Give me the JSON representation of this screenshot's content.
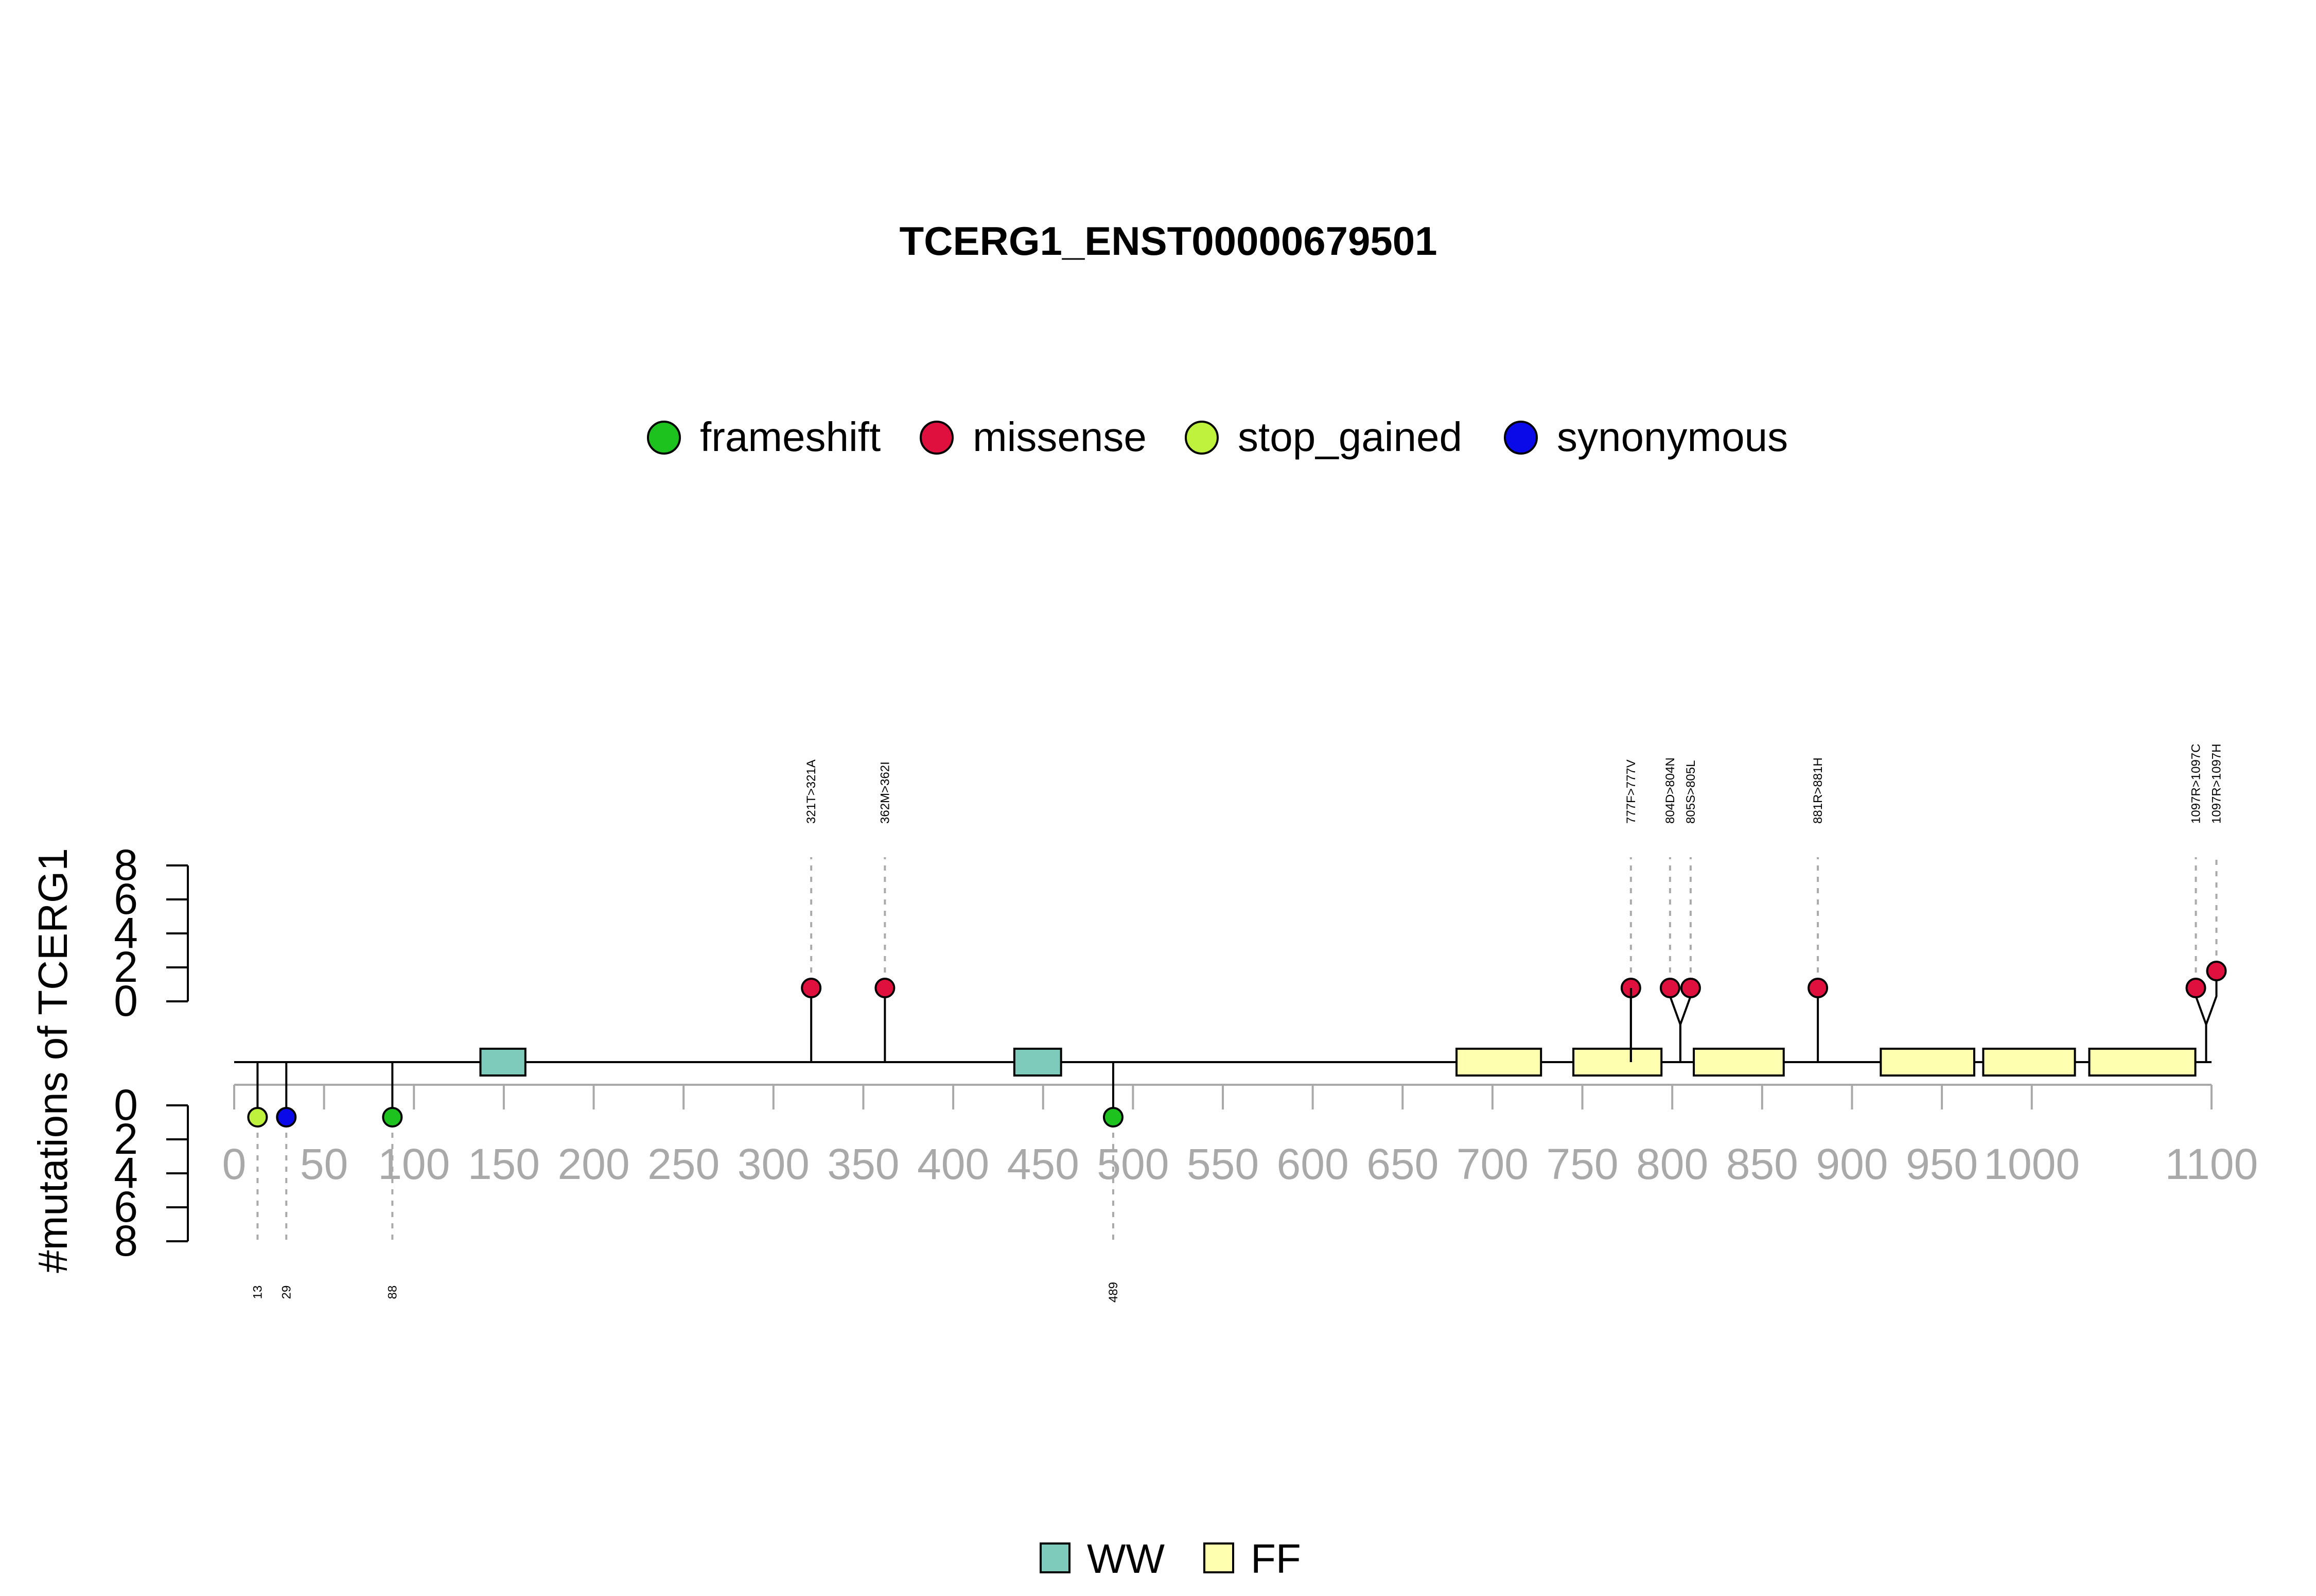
{
  "chart_data": {
    "type": "lollipop",
    "title": "TCERG1_ENST00000679501",
    "ylabel": "#mutations of TCERG1",
    "xlim": [
      0,
      1100
    ],
    "x_ticks": [
      0,
      50,
      100,
      150,
      200,
      250,
      300,
      350,
      400,
      450,
      500,
      550,
      600,
      650,
      700,
      750,
      800,
      850,
      900,
      950,
      1000,
      1100
    ],
    "y_ticks_top": [
      0,
      2,
      4,
      6,
      8
    ],
    "y_ticks_bottom": [
      0,
      2,
      4,
      6,
      8
    ],
    "mutation_types": [
      {
        "name": "frameshift",
        "color": "#1ec21e"
      },
      {
        "name": "missense",
        "color": "#e0103e"
      },
      {
        "name": "stop_gained",
        "color": "#bff23d"
      },
      {
        "name": "synonymous",
        "color": "#0a0ae8"
      }
    ],
    "domains": [
      {
        "name": "WW",
        "color": "#7fcbbb"
      },
      {
        "name": "FF",
        "color": "#ffffb0"
      }
    ],
    "domain_regions": [
      {
        "domain": "WW",
        "start": 137,
        "end": 162
      },
      {
        "domain": "WW",
        "start": 434,
        "end": 460
      },
      {
        "domain": "FF",
        "start": 680,
        "end": 727
      },
      {
        "domain": "FF",
        "start": 745,
        "end": 794
      },
      {
        "domain": "FF",
        "start": 812,
        "end": 862
      },
      {
        "domain": "FF",
        "start": 916,
        "end": 968
      },
      {
        "domain": "FF",
        "start": 973,
        "end": 1024
      },
      {
        "domain": "FF",
        "start": 1032,
        "end": 1091
      }
    ],
    "mutations_top": [
      {
        "pos": 321,
        "label": "321T>321A",
        "type": "missense",
        "count": 1
      },
      {
        "pos": 362,
        "label": "362M>362I",
        "type": "missense",
        "count": 1
      },
      {
        "pos": 777,
        "label": "777F>777V",
        "type": "missense",
        "count": 1
      },
      {
        "pos": 804,
        "label": "804D>804N",
        "type": "missense",
        "count": 1
      },
      {
        "pos": 805,
        "label": "805S>805L",
        "type": "missense",
        "count": 1
      },
      {
        "pos": 881,
        "label": "881R>881H",
        "type": "missense",
        "count": 1
      },
      {
        "pos": 1097,
        "label": "1097R>1097C",
        "type": "missense",
        "count": 1
      },
      {
        "pos": 1097,
        "label": "1097R>1097H",
        "type": "missense",
        "count": 2
      }
    ],
    "mutations_bottom": [
      {
        "pos": 13,
        "label": "13",
        "type": "stop_gained",
        "count": 1
      },
      {
        "pos": 29,
        "label": "29",
        "type": "synonymous",
        "count": 1
      },
      {
        "pos": 88,
        "label": "88",
        "type": "frameshift",
        "count": 1
      },
      {
        "pos": 489,
        "label": "489",
        "type": "frameshift",
        "count": 1
      }
    ]
  }
}
